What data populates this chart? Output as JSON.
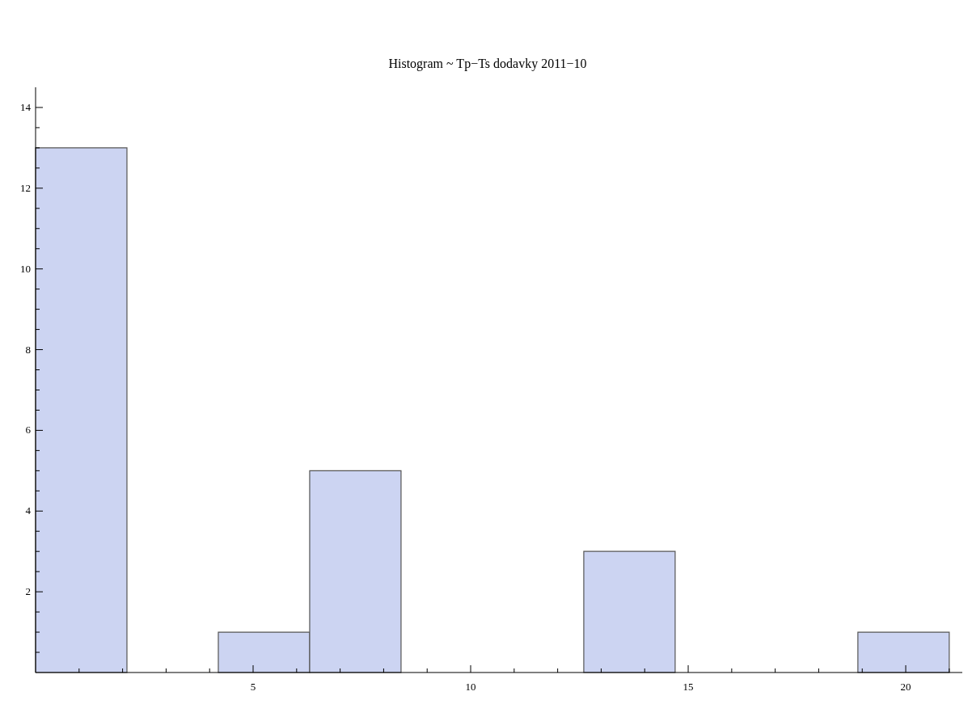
{
  "chart_data": {
    "type": "histogram",
    "title": "Histogram ~ Tp−Ts dodavky 2011−10",
    "bins": [
      0,
      2.1,
      4.2,
      6.3,
      8.4,
      10.5,
      12.6,
      14.7,
      16.8,
      18.9,
      21.0
    ],
    "values": [
      13,
      0,
      1,
      5,
      0,
      0,
      3,
      0,
      0,
      1
    ],
    "color": "#ccd4f2",
    "xlim": [
      0,
      21.3
    ],
    "xticks": [
      {
        "value": 1,
        "label": null
      },
      {
        "value": 2,
        "label": null
      },
      {
        "value": 3,
        "label": null
      },
      {
        "value": 4,
        "label": null
      },
      5,
      {
        "value": 6,
        "label": null
      },
      {
        "value": 7,
        "label": null
      },
      {
        "value": 8,
        "label": null
      },
      {
        "value": 9,
        "label": null
      },
      10,
      {
        "value": 11,
        "label": null
      },
      {
        "value": 12,
        "label": null
      },
      {
        "value": 13,
        "label": null
      },
      {
        "value": 14,
        "label": null
      },
      15,
      {
        "value": 16,
        "label": null
      },
      {
        "value": 17,
        "label": null
      },
      {
        "value": 18,
        "label": null
      },
      {
        "value": 19,
        "label": null
      },
      20,
      {
        "value": 21,
        "label": null
      }
    ],
    "ylim": [
      0,
      14.5
    ],
    "yticks": [
      {
        "value": 0.5,
        "label": null
      },
      {
        "value": 1,
        "label": null
      },
      {
        "value": 1.5,
        "label": null
      },
      2,
      {
        "value": 2.5,
        "label": null
      },
      {
        "value": 3,
        "label": null
      },
      {
        "value": 3.5,
        "label": null
      },
      4,
      {
        "value": 4.5,
        "label": null
      },
      {
        "value": 5,
        "label": null
      },
      {
        "value": 5.5,
        "label": null
      },
      6,
      {
        "value": 6.5,
        "label": null
      },
      {
        "value": 7,
        "label": null
      },
      {
        "value": 7.5,
        "label": null
      },
      8,
      {
        "value": 8.5,
        "label": null
      },
      {
        "value": 9,
        "label": null
      },
      {
        "value": 9.5,
        "label": null
      },
      10,
      {
        "value": 10.5,
        "label": null
      },
      {
        "value": 11,
        "label": null
      },
      {
        "value": 11.5,
        "label": null
      },
      12,
      {
        "value": 12.5,
        "label": null
      },
      {
        "value": 13,
        "label": null
      },
      {
        "value": 13.5,
        "label": null
      },
      14
    ]
  }
}
